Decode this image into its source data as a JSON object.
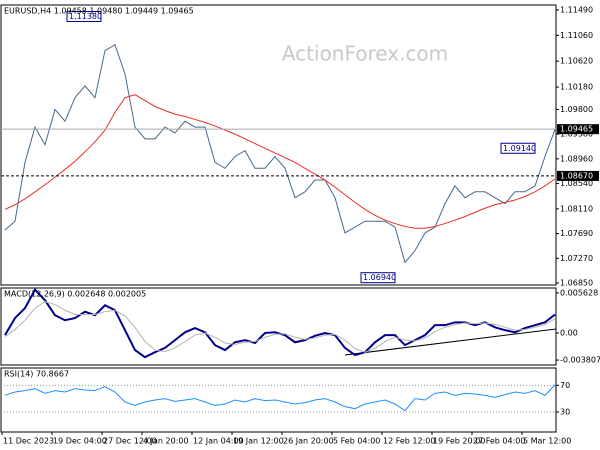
{
  "chart_data": [
    {
      "type": "line",
      "title": "EURUSD,H4  1.09458 1.09480 1.09449 1.09465",
      "watermark": "ActionForex.com",
      "categories": [
        "11 Dec 2023",
        null,
        null,
        null,
        null,
        "19 Dec 04:00",
        null,
        null,
        null,
        null,
        "27 Dec 12:00",
        null,
        null,
        null,
        "4 Jan 20:00",
        null,
        null,
        null,
        null,
        "12 Jan 04:00",
        null,
        null,
        null,
        "19 Jan 12:00",
        null,
        null,
        null,
        null,
        "26 Jan 20:00",
        null,
        null,
        null,
        null,
        "5 Feb 04:00",
        null,
        null,
        null,
        null,
        "12 Feb 12:00",
        null,
        null,
        null,
        null,
        "19 Feb 20:00",
        null,
        null,
        null,
        "27 Feb 04:00",
        null,
        null,
        null,
        null,
        "5 Mar 12:00",
        null,
        null,
        null
      ],
      "series": [
        {
          "color": "#46698c",
          "values": [
            1.0775,
            1.079,
            1.089,
            1.095,
            1.092,
            1.098,
            1.096,
            1.1,
            1.102,
            1.1,
            1.108,
            1.109,
            1.104,
            1.095,
            1.093,
            1.093,
            1.095,
            1.094,
            1.096,
            1.095,
            1.095,
            1.089,
            1.088,
            1.09,
            1.091,
            1.088,
            1.088,
            1.09,
            1.088,
            1.083,
            1.084,
            1.086,
            1.086,
            1.083,
            1.077,
            1.078,
            1.079,
            1.079,
            1.079,
            1.078,
            1.072,
            1.074,
            1.077,
            1.078,
            1.082,
            1.085,
            1.083,
            1.084,
            1.084,
            1.083,
            1.082,
            1.084,
            1.084,
            1.085,
            1.09,
            1.0946
          ]
        },
        {
          "color": "#e8302a",
          "values": [
            1.081,
            1.0818,
            1.0828,
            1.084,
            1.0852,
            1.0865,
            1.0878,
            1.0892,
            1.0908,
            1.0925,
            1.0945,
            1.0975,
            1.1,
            1.1005,
            1.0995,
            1.0985,
            1.0978,
            1.0972,
            1.0968,
            1.0963,
            1.0958,
            1.0952,
            1.0945,
            1.0938,
            1.093,
            1.0922,
            1.0914,
            1.0906,
            1.0898,
            1.089,
            1.088,
            1.087,
            1.086,
            1.0848,
            1.0835,
            1.0822,
            1.081,
            1.08,
            1.0792,
            1.0786,
            1.0781,
            1.0778,
            1.0778,
            1.0781,
            1.0786,
            1.0792,
            1.0798,
            1.0805,
            1.0812,
            1.0818,
            1.0822,
            1.0826,
            1.0832,
            1.084,
            1.085,
            1.0862
          ]
        }
      ],
      "ylim": [
        1.06816,
        1.11575
      ],
      "yticks": [
        {
          "value": 1.1149,
          "label": "1.11490"
        },
        {
          "value": 1.1106,
          "label": "1.11060"
        },
        {
          "value": 1.1062,
          "label": "1.10620"
        },
        {
          "value": 1.1018,
          "label": "1.10180"
        },
        {
          "value": 1.098,
          "label": "1.09800"
        },
        {
          "value": 1.0938,
          "label": "1.09380"
        },
        {
          "value": 1.0896,
          "label": "1.08960"
        },
        {
          "value": 1.0854,
          "label": "1.08540"
        },
        {
          "value": 1.0811,
          "label": "1.08110"
        },
        {
          "value": 1.0769,
          "label": "1.07690"
        },
        {
          "value": 1.0727,
          "label": "1.07270"
        },
        {
          "value": 1.0685,
          "label": "1.06850"
        }
      ],
      "levels": [
        {
          "value": 1.09465,
          "label": "1.09465",
          "style": "solid"
        },
        {
          "value": 1.0867,
          "label": "1.08670",
          "style": "dashed"
        }
      ],
      "annotations": [
        {
          "value": 1.1138,
          "label": "1.11380"
        },
        {
          "value": 1.0694,
          "label": "1.06940"
        },
        {
          "value": 1.0914,
          "label": "1.09140"
        }
      ],
      "grid": false
    },
    {
      "type": "line",
      "title": "MACD(12,26,9) 0.002648 0.002005",
      "series": [
        {
          "color": "#00008b",
          "values": [
            -0.0003,
            0.0021,
            0.0035,
            0.0061,
            0.0046,
            0.0025,
            0.0018,
            0.0021,
            0.003,
            0.0025,
            0.0039,
            0.0032,
            0.0004,
            -0.0024,
            -0.0034,
            -0.0027,
            -0.0021,
            -0.001,
            0.0001,
            0.0007,
            0.0001,
            -0.0017,
            -0.0024,
            -0.0013,
            -0.001,
            -0.0014,
            0.0,
            0.0001,
            -0.0003,
            -0.0013,
            -0.001,
            -0.0004,
            0.0,
            -0.0003,
            -0.0021,
            -0.0031,
            -0.0027,
            -0.0013,
            -0.0003,
            -0.0003,
            -0.0017,
            -0.001,
            -0.0003,
            0.0011,
            0.0011,
            0.0015,
            0.0015,
            0.0011,
            0.0015,
            0.0008,
            0.0004,
            0.0001,
            0.0007,
            0.0011,
            0.0015,
            0.0026
          ]
        },
        {
          "color": "#b4b4b4",
          "values": [
            -0.0005,
            0.0005,
            0.0018,
            0.0035,
            0.0044,
            0.004,
            0.0032,
            0.0026,
            0.0026,
            0.0026,
            0.003,
            0.0032,
            0.0024,
            0.0008,
            -0.0012,
            -0.0024,
            -0.0026,
            -0.0021,
            -0.0012,
            -0.0003,
            0.0,
            -0.0006,
            -0.0014,
            -0.0016,
            -0.0013,
            -0.0012,
            -0.0006,
            -0.0002,
            -0.0001,
            -0.0006,
            -0.0009,
            -0.0007,
            -0.0003,
            -0.0002,
            -0.001,
            -0.0022,
            -0.0027,
            -0.0022,
            -0.0012,
            -0.0006,
            -0.001,
            -0.0011,
            -0.0007,
            0.0002,
            0.0008,
            0.0012,
            0.0014,
            0.0013,
            0.0014,
            0.0012,
            0.0008,
            0.0004,
            0.0005,
            0.0008,
            0.0012,
            0.002
          ]
        }
      ],
      "ylim": [
        -0.0045,
        0.00633
      ],
      "yticks": [
        0.005628,
        {
          "value": 0,
          "label": "0.00"
        },
        -0.003807
      ],
      "grid": false
    },
    {
      "type": "line",
      "title": "RSI(14) 70.8667",
      "series": [
        {
          "color": "#1e90ff",
          "values": [
            55,
            60,
            62,
            65,
            58,
            62,
            60,
            65,
            63,
            62,
            68,
            60,
            45,
            40,
            45,
            48,
            50,
            46,
            48,
            50,
            45,
            40,
            42,
            48,
            45,
            50,
            47,
            48,
            45,
            42,
            44,
            48,
            50,
            45,
            38,
            35,
            42,
            45,
            48,
            42,
            32,
            50,
            48,
            58,
            60,
            55,
            58,
            57,
            55,
            52,
            56,
            60,
            58,
            62,
            55,
            70.8667
          ]
        }
      ],
      "ylim": [
        0,
        96
      ],
      "yticks": [
        70,
        30
      ],
      "grid": true
    }
  ]
}
